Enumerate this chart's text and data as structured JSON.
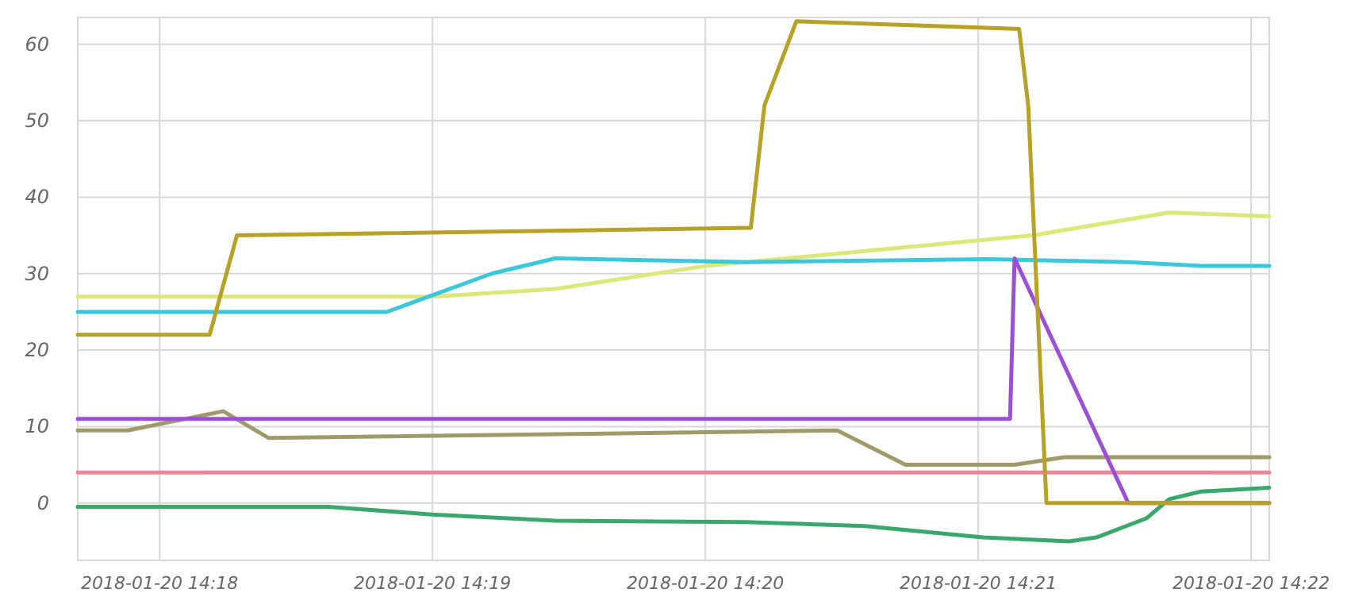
{
  "chart_data": {
    "type": "line",
    "xlim": [
      "2018-01-20T14:17:42",
      "2018-01-20T14:22:04"
    ],
    "ylim": [
      -7.5,
      63.5
    ],
    "xticks": [
      {
        "value": "2018-01-20T14:18",
        "label": "2018-01-20 14:18"
      },
      {
        "value": "2018-01-20T14:19",
        "label": "2018-01-20 14:19"
      },
      {
        "value": "2018-01-20T14:20",
        "label": "2018-01-20 14:20"
      },
      {
        "value": "2018-01-20T14:21",
        "label": "2018-01-20 14:21"
      },
      {
        "value": "2018-01-20T14:22",
        "label": "2018-01-20 14:22"
      }
    ],
    "yticks": [
      0,
      10,
      20,
      30,
      40,
      50,
      60
    ],
    "grid": true,
    "marker": "none",
    "line_style": "solid",
    "series": [
      {
        "color": "#e88a9a",
        "x": [
          "2018-01-20T14:17:42",
          "2018-01-20T14:22:04"
        ],
        "values": [
          4,
          4
        ]
      },
      {
        "color": "#a09a6a",
        "x": [
          "2018-01-20T14:17:42",
          "2018-01-20T14:17:53",
          "2018-01-20T14:18:14",
          "2018-01-20T14:18:24",
          "2018-01-20T14:20:29",
          "2018-01-20T14:20:44",
          "2018-01-20T14:21:08",
          "2018-01-20T14:21:19",
          "2018-01-20T14:22:04"
        ],
        "values": [
          9.5,
          9.5,
          12,
          8.5,
          9.5,
          5,
          5,
          6,
          6
        ]
      },
      {
        "color": "#3aa86a",
        "x": [
          "2018-01-20T14:17:42",
          "2018-01-20T14:18:37",
          "2018-01-20T14:19:00",
          "2018-01-20T14:19:27",
          "2018-01-20T14:20:09",
          "2018-01-20T14:20:35",
          "2018-01-20T14:21:01",
          "2018-01-20T14:21:20",
          "2018-01-20T14:21:26",
          "2018-01-20T14:21:37",
          "2018-01-20T14:21:42",
          "2018-01-20T14:21:49",
          "2018-01-20T14:22:04"
        ],
        "values": [
          -0.5,
          -0.5,
          -1.5,
          -2.3,
          -2.5,
          -3,
          -4.5,
          -5,
          -4.5,
          -2,
          0.5,
          1.5,
          2
        ]
      },
      {
        "color": "#dde87a",
        "x": [
          "2018-01-20T14:17:42",
          "2018-01-20T14:19:00",
          "2018-01-20T14:19:27",
          "2018-01-20T14:20:00",
          "2018-01-20T14:21:12",
          "2018-01-20T14:21:42",
          "2018-01-20T14:22:04"
        ],
        "values": [
          27,
          27,
          28,
          31,
          35,
          38,
          37.5
        ]
      },
      {
        "color": "#3cc8dc",
        "x": [
          "2018-01-20T14:17:42",
          "2018-01-20T14:18:50",
          "2018-01-20T14:19:13",
          "2018-01-20T14:19:27",
          "2018-01-20T14:20:09",
          "2018-01-20T14:21:02",
          "2018-01-20T14:21:33",
          "2018-01-20T14:21:49",
          "2018-01-20T14:22:04"
        ],
        "values": [
          25,
          25,
          30,
          32,
          31.5,
          31.9,
          31.5,
          31,
          31
        ]
      },
      {
        "color": "#9b4fd6",
        "x": [
          "2018-01-20T14:17:42",
          "2018-01-20T14:21:07",
          "2018-01-20T14:21:08",
          "2018-01-20T14:21:33",
          "2018-01-20T14:22:04"
        ],
        "values": [
          11,
          11,
          32,
          0,
          0
        ]
      },
      {
        "color": "#b8a127",
        "x": [
          "2018-01-20T14:17:42",
          "2018-01-20T14:18:11",
          "2018-01-20T14:18:17",
          "2018-01-20T14:20:10",
          "2018-01-20T14:20:13",
          "2018-01-20T14:20:20",
          "2018-01-20T14:21:09",
          "2018-01-20T14:21:11",
          "2018-01-20T14:21:15",
          "2018-01-20T14:22:04"
        ],
        "values": [
          22,
          22,
          35,
          36,
          52,
          63,
          62,
          52,
          0,
          0
        ]
      }
    ]
  }
}
